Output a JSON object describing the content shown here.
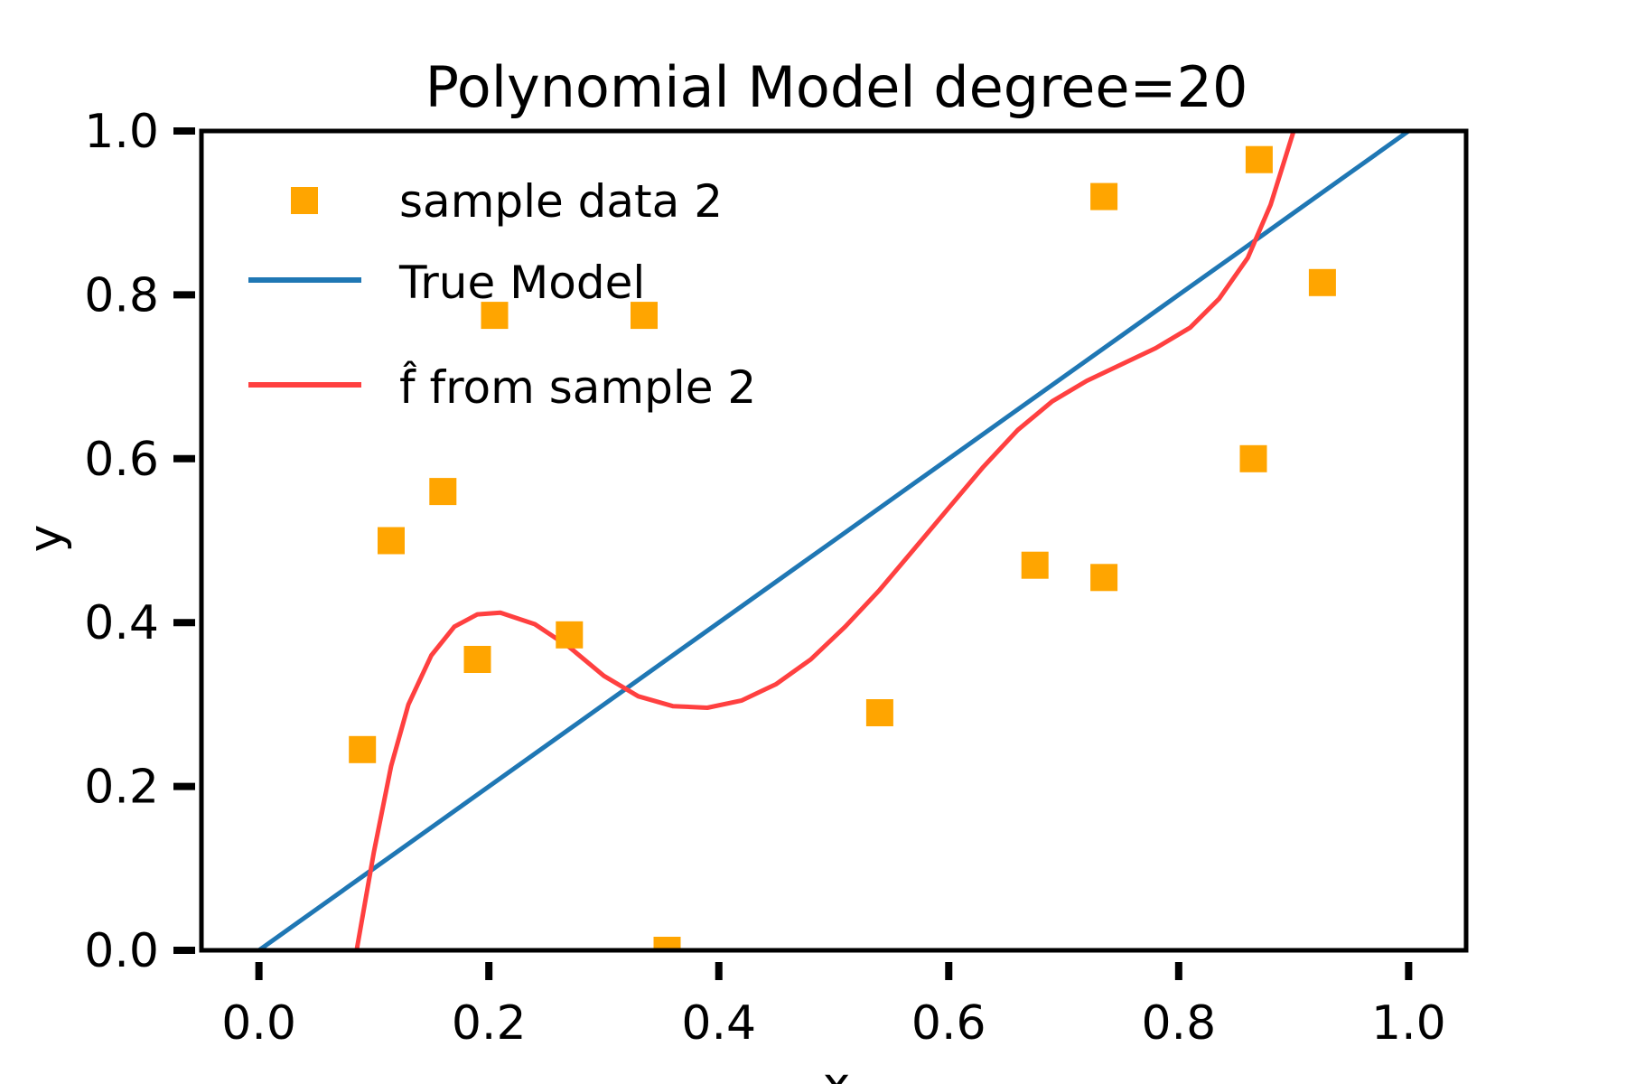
{
  "chart_data": {
    "type": "scatter",
    "title": "Polynomial Model degree=20",
    "xlabel": "x",
    "ylabel": "y",
    "xlim": [
      -0.05,
      1.05
    ],
    "ylim": [
      0.0,
      1.0
    ],
    "xticks": [
      "0.0",
      "0.2",
      "0.4",
      "0.6",
      "0.8",
      "1.0"
    ],
    "yticks": [
      "0.0",
      "0.2",
      "0.4",
      "0.6",
      "0.8",
      "1.0"
    ],
    "grid": false,
    "legend_position": "top-left",
    "series": [
      {
        "name": "sample data 2",
        "kind": "scatter",
        "marker": "square",
        "color": "#ffa500",
        "points": [
          {
            "x": 0.09,
            "y": 0.245
          },
          {
            "x": 0.115,
            "y": 0.5
          },
          {
            "x": 0.16,
            "y": 0.56
          },
          {
            "x": 0.19,
            "y": 0.355
          },
          {
            "x": 0.205,
            "y": 0.775
          },
          {
            "x": 0.27,
            "y": 0.385
          },
          {
            "x": 0.335,
            "y": 0.775
          },
          {
            "x": 0.355,
            "y": 0.0
          },
          {
            "x": 0.54,
            "y": 0.29
          },
          {
            "x": 0.675,
            "y": 0.47
          },
          {
            "x": 0.735,
            "y": 0.455
          },
          {
            "x": 0.735,
            "y": 0.92
          },
          {
            "x": 0.865,
            "y": 0.6
          },
          {
            "x": 0.87,
            "y": 0.965
          },
          {
            "x": 0.925,
            "y": 0.815
          }
        ]
      },
      {
        "name": "True Model",
        "kind": "line",
        "color": "#1f77b4",
        "points": [
          {
            "x": 0.0,
            "y": 0.0
          },
          {
            "x": 0.05,
            "y": 0.05
          },
          {
            "x": 0.1,
            "y": 0.1
          },
          {
            "x": 0.15,
            "y": 0.15
          },
          {
            "x": 0.2,
            "y": 0.2
          },
          {
            "x": 0.25,
            "y": 0.25
          },
          {
            "x": 0.3,
            "y": 0.3
          },
          {
            "x": 0.35,
            "y": 0.35
          },
          {
            "x": 0.4,
            "y": 0.4
          },
          {
            "x": 0.45,
            "y": 0.45
          },
          {
            "x": 0.5,
            "y": 0.5
          },
          {
            "x": 0.55,
            "y": 0.55
          },
          {
            "x": 0.6,
            "y": 0.6
          },
          {
            "x": 0.65,
            "y": 0.65
          },
          {
            "x": 0.7,
            "y": 0.7
          },
          {
            "x": 0.75,
            "y": 0.75
          },
          {
            "x": 0.8,
            "y": 0.8
          },
          {
            "x": 0.85,
            "y": 0.85
          },
          {
            "x": 0.9,
            "y": 0.9
          },
          {
            "x": 0.95,
            "y": 0.95
          },
          {
            "x": 1.0,
            "y": 1.0
          }
        ]
      },
      {
        "name": "f̂ from sample 2",
        "kind": "line",
        "color": "#ff4040",
        "points": [
          {
            "x": 0.085,
            "y": 0.0
          },
          {
            "x": 0.1,
            "y": 0.12
          },
          {
            "x": 0.115,
            "y": 0.225
          },
          {
            "x": 0.13,
            "y": 0.3
          },
          {
            "x": 0.15,
            "y": 0.36
          },
          {
            "x": 0.17,
            "y": 0.395
          },
          {
            "x": 0.19,
            "y": 0.41
          },
          {
            "x": 0.21,
            "y": 0.412
          },
          {
            "x": 0.24,
            "y": 0.398
          },
          {
            "x": 0.27,
            "y": 0.37
          },
          {
            "x": 0.3,
            "y": 0.335
          },
          {
            "x": 0.33,
            "y": 0.31
          },
          {
            "x": 0.36,
            "y": 0.298
          },
          {
            "x": 0.39,
            "y": 0.296
          },
          {
            "x": 0.42,
            "y": 0.305
          },
          {
            "x": 0.45,
            "y": 0.325
          },
          {
            "x": 0.48,
            "y": 0.355
          },
          {
            "x": 0.51,
            "y": 0.395
          },
          {
            "x": 0.54,
            "y": 0.44
          },
          {
            "x": 0.57,
            "y": 0.49
          },
          {
            "x": 0.6,
            "y": 0.54
          },
          {
            "x": 0.63,
            "y": 0.59
          },
          {
            "x": 0.66,
            "y": 0.635
          },
          {
            "x": 0.69,
            "y": 0.67
          },
          {
            "x": 0.72,
            "y": 0.695
          },
          {
            "x": 0.75,
            "y": 0.715
          },
          {
            "x": 0.78,
            "y": 0.735
          },
          {
            "x": 0.81,
            "y": 0.76
          },
          {
            "x": 0.835,
            "y": 0.795
          },
          {
            "x": 0.86,
            "y": 0.845
          },
          {
            "x": 0.88,
            "y": 0.91
          },
          {
            "x": 0.9,
            "y": 1.0
          }
        ]
      }
    ]
  }
}
